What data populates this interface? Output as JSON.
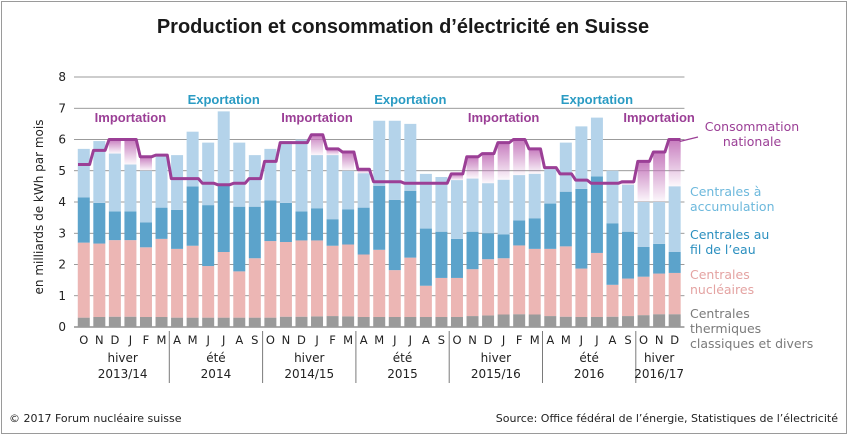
{
  "title": "Production et consommation d’électricité en Suisse",
  "footer": {
    "copyright": "© 2017 Forum nucléaire suisse",
    "source": "Source: Office fédéral de l’énergie, Statistiques de l’électricité"
  },
  "colors": {
    "thermal": "#9a9a9a",
    "nuclear": "#ecb6b4",
    "run_of_river": "#5ca3cb",
    "storage": "#b4d3ea",
    "consumption": "#9b3f96",
    "import_fill": "#c476bb",
    "export_label": "#2a9bc3",
    "import_label": "#9b3f96",
    "grid": "#7a7a7a",
    "axis_text": "#222222"
  },
  "chart_data": {
    "type": "bar",
    "stacked": true,
    "ylabel": "en milliards de kWh par mois",
    "ylim": [
      0,
      8
    ],
    "yticks": [
      0,
      1,
      2,
      3,
      4,
      5,
      6,
      7,
      8
    ],
    "grid": true,
    "categories": [
      "O",
      "N",
      "D",
      "J",
      "F",
      "M",
      "A",
      "M",
      "J",
      "J",
      "A",
      "S",
      "O",
      "N",
      "D",
      "J",
      "F",
      "M",
      "A",
      "M",
      "J",
      "J",
      "A",
      "S",
      "O",
      "N",
      "D",
      "J",
      "F",
      "M",
      "A",
      "M",
      "J",
      "J",
      "A",
      "S",
      "O",
      "N",
      "D"
    ],
    "periods": [
      {
        "label": "hiver",
        "label2": "2013/14",
        "months": 6
      },
      {
        "label": "été",
        "label2": "2014",
        "months": 6
      },
      {
        "label": "hiver",
        "label2": "2014/15",
        "months": 6
      },
      {
        "label": "été",
        "label2": "2015",
        "months": 6
      },
      {
        "label": "hiver",
        "label2": "2015/16",
        "months": 6
      },
      {
        "label": "été",
        "label2": "2016",
        "months": 6
      },
      {
        "label": "hiver",
        "label2": "2016/17",
        "months": 3
      }
    ],
    "series": [
      {
        "name": "Centrales thermiques classiques et divers",
        "key": "thermal",
        "values": [
          0.3,
          0.32,
          0.33,
          0.33,
          0.32,
          0.32,
          0.3,
          0.3,
          0.3,
          0.3,
          0.3,
          0.3,
          0.3,
          0.33,
          0.33,
          0.34,
          0.35,
          0.34,
          0.32,
          0.32,
          0.32,
          0.32,
          0.32,
          0.32,
          0.32,
          0.35,
          0.37,
          0.4,
          0.41,
          0.4,
          0.35,
          0.33,
          0.32,
          0.32,
          0.33,
          0.35,
          0.38,
          0.41,
          0.41
        ]
      },
      {
        "name": "Centrales nucléaires",
        "key": "nuclear",
        "values": [
          2.4,
          2.35,
          2.45,
          2.45,
          2.23,
          2.5,
          2.2,
          2.3,
          1.65,
          2.1,
          1.48,
          1.9,
          2.45,
          2.39,
          2.44,
          2.43,
          2.25,
          2.3,
          2.0,
          2.15,
          1.5,
          1.9,
          1.0,
          1.25,
          1.25,
          1.5,
          1.8,
          1.8,
          2.2,
          2.1,
          2.15,
          2.25,
          1.55,
          2.05,
          1.02,
          1.2,
          1.23,
          1.3,
          1.32
        ]
      },
      {
        "name": "Centrales au fil de l’eau",
        "key": "run_of_river",
        "values": [
          1.45,
          1.3,
          0.92,
          0.92,
          0.8,
          1.0,
          1.25,
          1.9,
          1.95,
          2.2,
          2.07,
          1.65,
          1.3,
          1.25,
          0.93,
          1.03,
          0.85,
          1.12,
          1.5,
          2.05,
          2.25,
          2.14,
          1.83,
          1.48,
          1.25,
          1.2,
          0.83,
          0.76,
          0.8,
          0.98,
          1.45,
          1.75,
          2.55,
          2.45,
          1.97,
          1.5,
          0.95,
          0.95,
          0.67
        ]
      },
      {
        "name": "Centrales à accumulation",
        "key": "storage",
        "values": [
          1.55,
          1.98,
          1.85,
          1.5,
          1.65,
          1.64,
          1.75,
          1.75,
          2.0,
          2.3,
          2.05,
          1.65,
          1.65,
          1.98,
          2.3,
          1.7,
          2.05,
          1.24,
          1.1,
          2.08,
          2.53,
          2.14,
          1.75,
          1.75,
          1.88,
          1.7,
          1.6,
          1.75,
          1.45,
          1.42,
          1.1,
          1.57,
          2.0,
          1.88,
          1.68,
          1.5,
          1.44,
          1.34,
          2.1
        ]
      }
    ],
    "consumption": {
      "name": "Consommation nationale",
      "values": [
        5.2,
        5.65,
        6.0,
        6.0,
        5.45,
        5.5,
        4.75,
        4.75,
        4.6,
        4.55,
        4.6,
        4.75,
        5.3,
        5.9,
        5.9,
        6.15,
        5.7,
        5.6,
        5.05,
        4.65,
        4.65,
        4.6,
        4.6,
        4.6,
        4.9,
        5.45,
        5.55,
        5.9,
        6.0,
        5.7,
        5.1,
        4.9,
        4.7,
        4.6,
        4.6,
        4.65,
        5.3,
        5.6,
        6.0
      ]
    },
    "annotations": [
      {
        "text": "Importation",
        "type": "import",
        "month": 3.5
      },
      {
        "text": "Exportation",
        "type": "export",
        "month": 9.5
      },
      {
        "text": "Importation",
        "type": "import",
        "month": 15.5
      },
      {
        "text": "Exportation",
        "type": "export",
        "month": 21.5
      },
      {
        "text": "Importation",
        "type": "import",
        "month": 27.5
      },
      {
        "text": "Exportation",
        "type": "export",
        "month": 33.5
      },
      {
        "text": "Importation",
        "type": "import",
        "month": 37.5
      }
    ],
    "legend": [
      {
        "key": "consumption",
        "lines": [
          "Consommation",
          "nationale"
        ]
      },
      {
        "key": "storage",
        "lines": [
          "Centrales à",
          "accumulation"
        ]
      },
      {
        "key": "run_of_river",
        "lines": [
          "Centrales au",
          "fil de l’eau"
        ]
      },
      {
        "key": "nuclear",
        "lines": [
          "Centrales",
          "nucléaires"
        ]
      },
      {
        "key": "thermal",
        "lines": [
          "Centrales",
          "thermiques",
          "classiques et divers"
        ]
      }
    ]
  }
}
